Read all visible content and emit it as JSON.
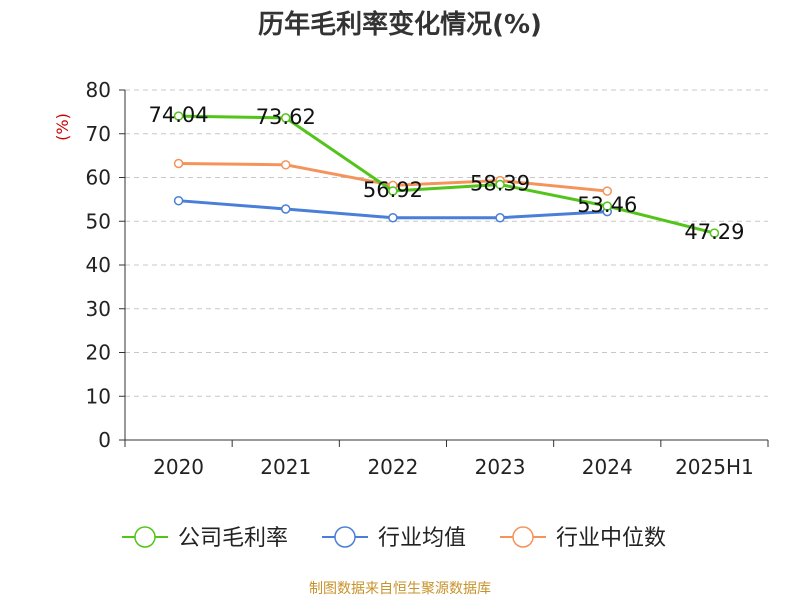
{
  "chart_data": {
    "type": "line",
    "title": "历年毛利率变化情况(%)",
    "ylabel": "(%)",
    "categories": [
      "2020",
      "2021",
      "2022",
      "2023",
      "2024",
      "2025H1"
    ],
    "ylim": [
      0,
      80
    ],
    "yticks": [
      0,
      10,
      20,
      30,
      40,
      50,
      60,
      70,
      80
    ],
    "grid": true,
    "legend_position": "bottom",
    "series": [
      {
        "name": "公司毛利率",
        "color": "#52c41a",
        "values": [
          74.04,
          73.62,
          56.92,
          58.39,
          53.46,
          47.29
        ],
        "labels": [
          "74.04",
          "73.62",
          "56.92",
          "58.39",
          "53.46",
          "47.29"
        ]
      },
      {
        "name": "行业均值",
        "color": "#4a7fd9",
        "values": [
          54.7,
          52.8,
          50.8,
          50.8,
          52.2,
          null
        ]
      },
      {
        "name": "行业中位数",
        "color": "#f4935a",
        "values": [
          63.2,
          62.9,
          58.2,
          59.3,
          56.9,
          null
        ]
      }
    ],
    "ylabel_color": "#cc0000"
  },
  "footer": {
    "text": "制图数据来自恒生聚源数据库",
    "color": "#c8922a"
  }
}
